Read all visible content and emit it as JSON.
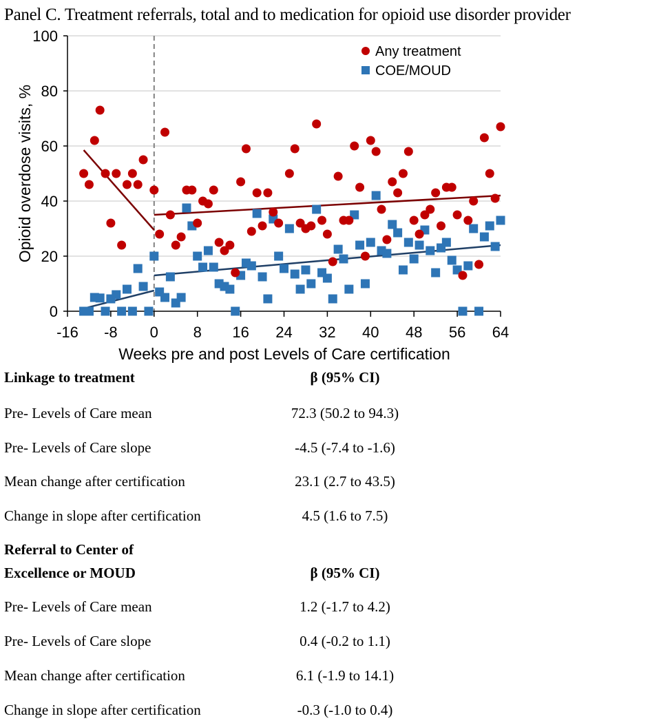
{
  "panel_title": "Panel C. Treatment referrals, total and to medication for opioid use disorder provider",
  "chart_data": {
    "type": "scatter",
    "title": "Panel C. Treatment referrals, total and to medication for opioid use disorder provider",
    "xlabel": "Weeks pre and post Levels of Care certification",
    "ylabel": "Opioid overdose visits, %",
    "xlim": [
      -16,
      64
    ],
    "ylim": [
      0,
      100
    ],
    "x_ticks": [
      -16,
      -8,
      0,
      8,
      16,
      24,
      32,
      40,
      48,
      56,
      64
    ],
    "y_ticks": [
      0,
      20,
      40,
      60,
      80,
      100
    ],
    "grid": "horizontal",
    "legend_position": "top-right",
    "intervention_line_x": 0,
    "series": [
      {
        "name": "Any treatment",
        "marker": "circle",
        "color": "#c00000",
        "points": [
          [
            -13,
            50
          ],
          [
            -12,
            46
          ],
          [
            -11,
            62
          ],
          [
            -10,
            73
          ],
          [
            -9,
            50
          ],
          [
            -8,
            32
          ],
          [
            -7,
            50
          ],
          [
            -6,
            24
          ],
          [
            -5,
            46
          ],
          [
            -4,
            50
          ],
          [
            -3,
            46
          ],
          [
            -2,
            55
          ],
          [
            0,
            44
          ],
          [
            1,
            28
          ],
          [
            2,
            65
          ],
          [
            3,
            35
          ],
          [
            4,
            24
          ],
          [
            5,
            27
          ],
          [
            6,
            44
          ],
          [
            7,
            44
          ],
          [
            8,
            32
          ],
          [
            9,
            40
          ],
          [
            10,
            39
          ],
          [
            11,
            44
          ],
          [
            12,
            25
          ],
          [
            13,
            22
          ],
          [
            14,
            24
          ],
          [
            15,
            14
          ],
          [
            16,
            47
          ],
          [
            17,
            59
          ],
          [
            18,
            29
          ],
          [
            19,
            43
          ],
          [
            20,
            31
          ],
          [
            21,
            43
          ],
          [
            22,
            36
          ],
          [
            23,
            32
          ],
          [
            25,
            50
          ],
          [
            26,
            59
          ],
          [
            27,
            32
          ],
          [
            28,
            30
          ],
          [
            29,
            31
          ],
          [
            30,
            68
          ],
          [
            31,
            33
          ],
          [
            32,
            28
          ],
          [
            33,
            18
          ],
          [
            34,
            49
          ],
          [
            35,
            33
          ],
          [
            36,
            33
          ],
          [
            37,
            60
          ],
          [
            38,
            45
          ],
          [
            39,
            20
          ],
          [
            40,
            62
          ],
          [
            41,
            58
          ],
          [
            42,
            37
          ],
          [
            43,
            26
          ],
          [
            44,
            47
          ],
          [
            45,
            43
          ],
          [
            46,
            50
          ],
          [
            47,
            58
          ],
          [
            48,
            33
          ],
          [
            49,
            28
          ],
          [
            50,
            35
          ],
          [
            51,
            37
          ],
          [
            52,
            43
          ],
          [
            53,
            31
          ],
          [
            54,
            45
          ],
          [
            55,
            45
          ],
          [
            56,
            35
          ],
          [
            57,
            13
          ],
          [
            58,
            33
          ],
          [
            59,
            40
          ],
          [
            60,
            17
          ],
          [
            61,
            63
          ],
          [
            62,
            50
          ],
          [
            63,
            41
          ],
          [
            64,
            67
          ]
        ],
        "trend_lines": [
          {
            "segment": "pre",
            "from": [
              -13,
              58.5
            ],
            "to": [
              0,
              29.5
            ]
          },
          {
            "segment": "post",
            "from": [
              0,
              35
            ],
            "to": [
              64,
              42
            ]
          }
        ],
        "trend_color": "#7b0000"
      },
      {
        "name": "COE/MOUD",
        "marker": "square",
        "color": "#2e75b6",
        "points": [
          [
            -13,
            0
          ],
          [
            -12,
            0
          ],
          [
            -11,
            5
          ],
          [
            -10,
            4.8
          ],
          [
            -9,
            0
          ],
          [
            -8,
            4.5
          ],
          [
            -7,
            6
          ],
          [
            -6,
            0
          ],
          [
            -5,
            8
          ],
          [
            -4,
            0
          ],
          [
            -3,
            15.5
          ],
          [
            -2,
            9
          ],
          [
            -1,
            0
          ],
          [
            0,
            20
          ],
          [
            1,
            7
          ],
          [
            2,
            5
          ],
          [
            3,
            12.5
          ],
          [
            4,
            3
          ],
          [
            5,
            5
          ],
          [
            6,
            37.5
          ],
          [
            7,
            31
          ],
          [
            8,
            20
          ],
          [
            9,
            16
          ],
          [
            10,
            22
          ],
          [
            11,
            16
          ],
          [
            12,
            10
          ],
          [
            13,
            9
          ],
          [
            14,
            8
          ],
          [
            15,
            0
          ],
          [
            16,
            13
          ],
          [
            17,
            17.5
          ],
          [
            18,
            16.5
          ],
          [
            19,
            35.5
          ],
          [
            20,
            12.5
          ],
          [
            21,
            4.5
          ],
          [
            22,
            33.5
          ],
          [
            23,
            20
          ],
          [
            24,
            15.5
          ],
          [
            25,
            30
          ],
          [
            26,
            13.5
          ],
          [
            27,
            8
          ],
          [
            28,
            15
          ],
          [
            29,
            10
          ],
          [
            30,
            37
          ],
          [
            31,
            14
          ],
          [
            32,
            12
          ],
          [
            33,
            4.5
          ],
          [
            34,
            22.5
          ],
          [
            35,
            19
          ],
          [
            36,
            8
          ],
          [
            37,
            35
          ],
          [
            38,
            24
          ],
          [
            39,
            10
          ],
          [
            40,
            25
          ],
          [
            41,
            42
          ],
          [
            42,
            22
          ],
          [
            43,
            21
          ],
          [
            44,
            31.5
          ],
          [
            45,
            28.5
          ],
          [
            46,
            15
          ],
          [
            47,
            25
          ],
          [
            48,
            19
          ],
          [
            49,
            24
          ],
          [
            50,
            29.5
          ],
          [
            51,
            22
          ],
          [
            52,
            14
          ],
          [
            53,
            23
          ],
          [
            54,
            25
          ],
          [
            55,
            18.5
          ],
          [
            56,
            15
          ],
          [
            57,
            0
          ],
          [
            58,
            16.5
          ],
          [
            59,
            30
          ],
          [
            60,
            0
          ],
          [
            61,
            27
          ],
          [
            62,
            31
          ],
          [
            63,
            23.5
          ],
          [
            64,
            33
          ]
        ],
        "trend_lines": [
          {
            "segment": "pre",
            "from": [
              -13,
              1
            ],
            "to": [
              0,
              7.5
            ]
          },
          {
            "segment": "post",
            "from": [
              0,
              13
            ],
            "to": [
              64,
              24
            ]
          }
        ],
        "trend_color": "#1f3f66"
      }
    ]
  },
  "tables": [
    {
      "header_label": "Linkage to treatment",
      "header_value": "β (95% CI)",
      "rows": [
        {
          "label": "Pre- Levels of Care mean",
          "value": "72.3 (50.2 to 94.3)"
        },
        {
          "label": "Pre- Levels of Care slope",
          "value": "-4.5 (-7.4 to -1.6)"
        },
        {
          "label": "Mean change after certification",
          "value": "23.1 (2.7 to 43.5)"
        },
        {
          "label": "Change in slope after certification",
          "value": "4.5 (1.6 to 7.5)"
        }
      ]
    },
    {
      "header_label_line1": "Referral to Center of",
      "header_label_line2": "Excellence or MOUD",
      "header_value": "β (95% CI)",
      "rows": [
        {
          "label": "Pre- Levels of Care mean",
          "value": "1.2 (-1.7 to 4.2)"
        },
        {
          "label": "Pre- Levels of Care slope",
          "value": "0.4 (-0.2 to 1.1)"
        },
        {
          "label": "Mean change after certification",
          "value": "6.1 (-1.9 to 14.1)"
        },
        {
          "label": "Change in slope after certification",
          "value": "-0.3 (-1.0 to 0.4)"
        }
      ]
    }
  ]
}
